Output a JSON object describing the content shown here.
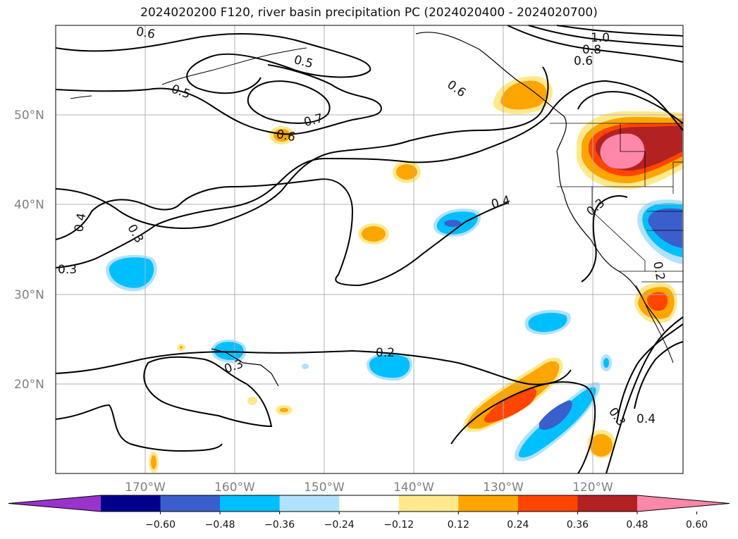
{
  "title": "2024020200 F120, river basin precipitation PC (2024020400 - 2024020700)",
  "axes": {
    "lat_labels": [
      "50°N",
      "40°N",
      "30°N",
      "20°N"
    ],
    "lon_labels": [
      "170°W",
      "160°W",
      "150°W",
      "140°W",
      "130°W",
      "120°W"
    ]
  },
  "colorbar": {
    "tick_labels": [
      "−0.60",
      "−0.48",
      "−0.36",
      "−0.24",
      "−0.12",
      "0.12",
      "0.24",
      "0.36",
      "0.48",
      "0.60"
    ],
    "colors": [
      "#9933cc",
      "#00008b",
      "#3a5fcd",
      "#00bfff",
      "#b0e2ff",
      "#ffffff",
      "#ffe98c",
      "#ffa500",
      "#ff4500",
      "#b22222",
      "#ff88aa"
    ]
  },
  "contour_labels": [
    "0.6",
    "0.5",
    "0.5",
    "0.7",
    "0.6",
    "0.6",
    "1.0",
    "0.8",
    "0.6",
    "0.4",
    "0.3",
    "0.4",
    "0.3",
    "0.2",
    "0.3",
    "0.2",
    "0.3",
    "0.4",
    "0.3"
  ],
  "colors": {
    "grid": "#b0b0b0",
    "contour": "#000000",
    "coast": "#000000"
  }
}
